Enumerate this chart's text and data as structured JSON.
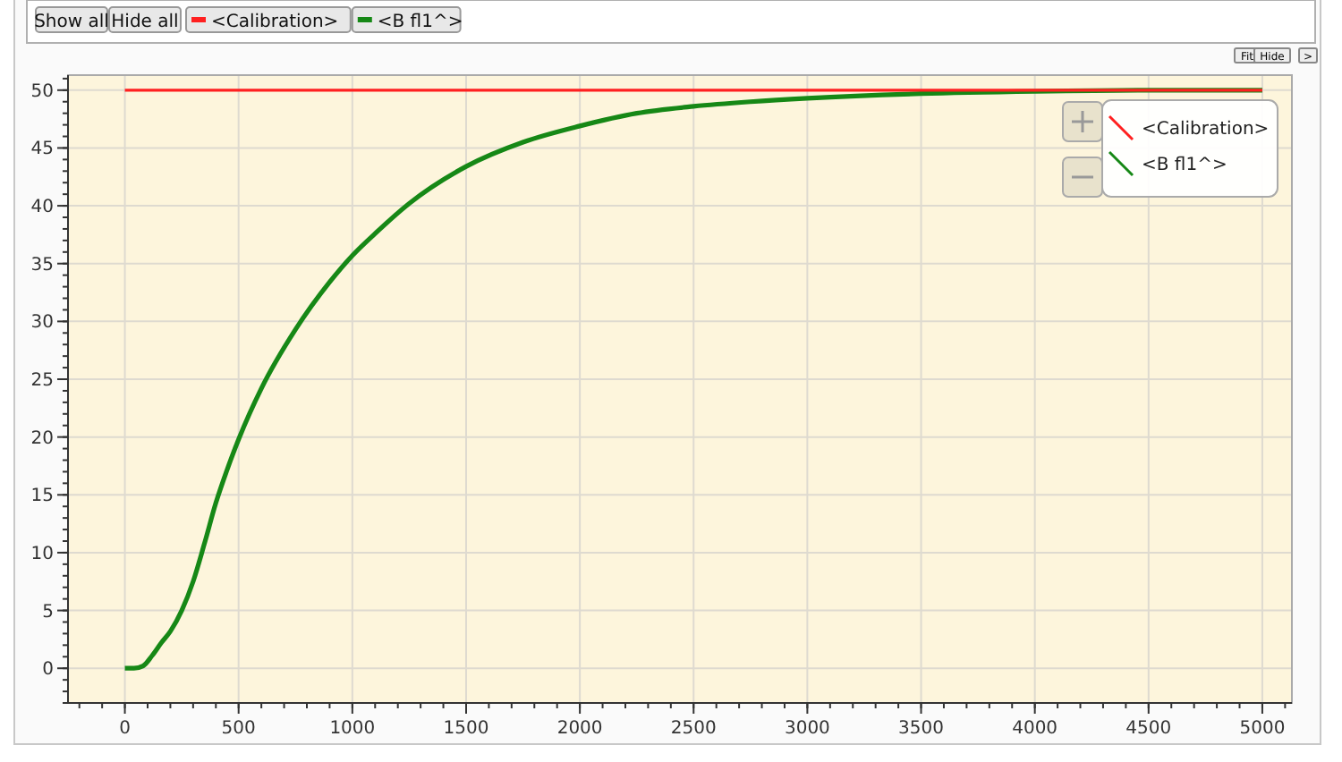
{
  "chart_data": {
    "type": "line",
    "series": [
      {
        "name": "<Calibration>",
        "color": "#ff2020",
        "x": [
          0,
          5000
        ],
        "values": [
          50,
          50
        ]
      },
      {
        "name": "<B fl1^>",
        "color": "#168816",
        "x": [
          0,
          40,
          80,
          120,
          160,
          200,
          250,
          300,
          350,
          400,
          450,
          500,
          600,
          750,
          900,
          1000,
          1100,
          1250,
          1500,
          1750,
          2000,
          2250,
          2500,
          2750,
          3000,
          3500,
          4000,
          4500,
          5000
        ],
        "values": [
          0,
          0,
          0.2,
          1.1,
          2.2,
          3.2,
          5,
          7.5,
          10.8,
          14.3,
          17.2,
          19.8,
          24.2,
          29.3,
          33.4,
          35.7,
          37.6,
          40.2,
          43.4,
          45.5,
          46.9,
          48,
          48.6,
          49,
          49.3,
          49.7,
          49.9,
          50,
          50
        ]
      }
    ],
    "xlim": [
      -250,
      5130
    ],
    "ylim": [
      -3,
      51.3
    ],
    "xticks": [
      0,
      500,
      1000,
      1500,
      2000,
      2500,
      3000,
      3500,
      4000,
      4500,
      5000
    ],
    "yticks": [
      0,
      5,
      10,
      15,
      20,
      25,
      30,
      35,
      40,
      45,
      50
    ],
    "grid": true,
    "legend": "top right",
    "line_style": "solid",
    "annotations": [
      "Show all",
      "Hide all",
      "Fit",
      "Hide",
      ">"
    ]
  }
}
